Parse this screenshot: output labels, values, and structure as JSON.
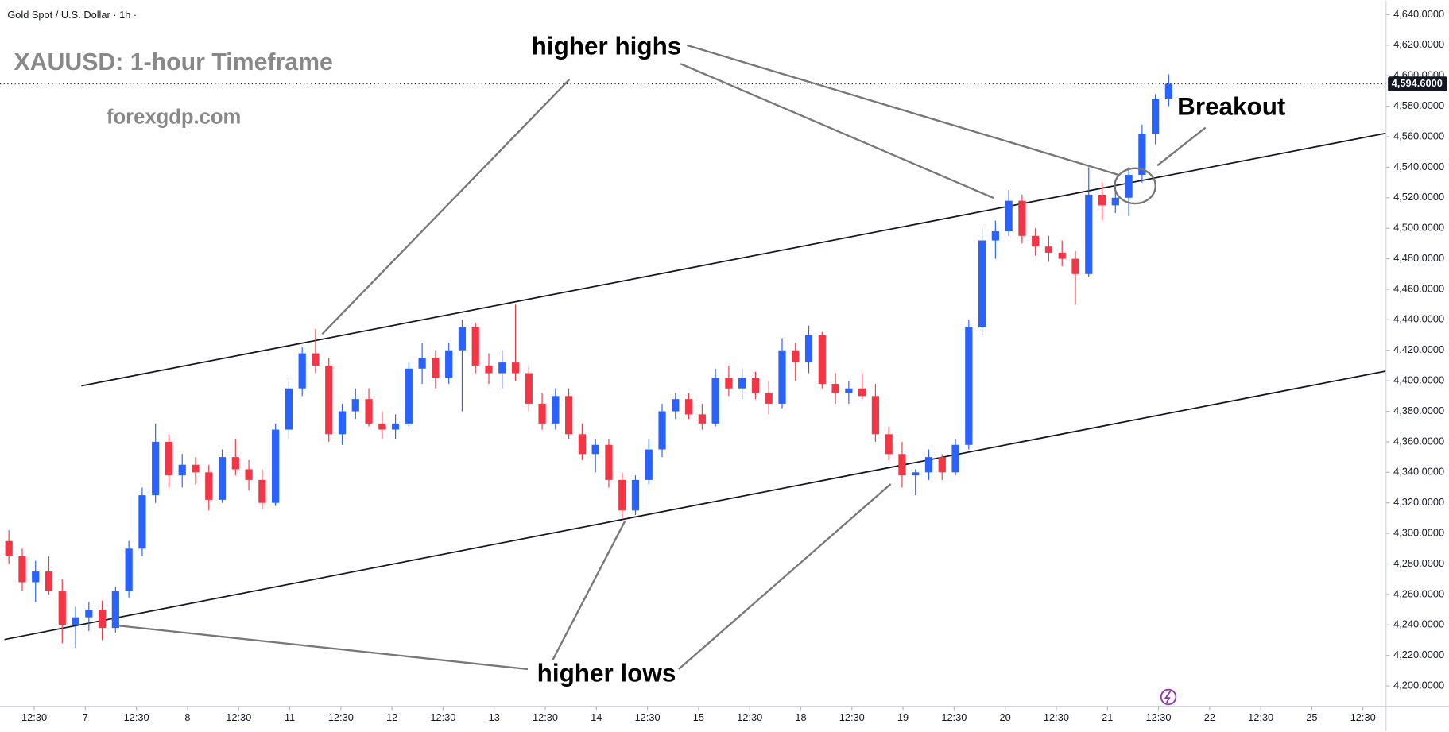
{
  "chart_data": {
    "type": "candlestick",
    "header": "Gold Spot / U.S. Dollar · 1h ·",
    "title": "XAUUSD: 1-hour Timeframe",
    "subtitle": "forexgdp.com",
    "annotations": {
      "highs": "higher highs",
      "lows": "higher lows",
      "breakout": "Breakout"
    },
    "up_color": "#2962ff",
    "down_color": "#f23645",
    "xlim": [
      0,
      311.9
    ],
    "ylim": [
      4186.7,
      4649.1
    ],
    "yticks": [
      {
        "value": 4200,
        "label": "4,200.0000"
      },
      {
        "value": 4220,
        "label": "4,220.0000"
      },
      {
        "value": 4240,
        "label": "4,240.0000"
      },
      {
        "value": 4260,
        "label": "4,260.0000"
      },
      {
        "value": 4280,
        "label": "4,280.0000"
      },
      {
        "value": 4300,
        "label": "4,300.0000"
      },
      {
        "value": 4320,
        "label": "4,320.0000"
      },
      {
        "value": 4340,
        "label": "4,340.0000"
      },
      {
        "value": 4360,
        "label": "4,360.0000"
      },
      {
        "value": 4380,
        "label": "4,380.0000"
      },
      {
        "value": 4400,
        "label": "4,400.0000"
      },
      {
        "value": 4420,
        "label": "4,420.0000"
      },
      {
        "value": 4440,
        "label": "4,440.0000"
      },
      {
        "value": 4460,
        "label": "4,460.0000"
      },
      {
        "value": 4480,
        "label": "4,480.0000"
      },
      {
        "value": 4500,
        "label": "4,500.0000"
      },
      {
        "value": 4520,
        "label": "4,520.0000"
      },
      {
        "value": 4540,
        "label": "4,540.0000"
      },
      {
        "value": 4560,
        "label": "4,560.0000"
      },
      {
        "value": 4580,
        "label": "4,580.0000"
      },
      {
        "value": 4600,
        "label": "4,600.0000"
      },
      {
        "value": 4620,
        "label": "4,620.0000"
      },
      {
        "value": 4640,
        "label": "4,640.0000"
      }
    ],
    "xticks": [
      {
        "value": 7.7,
        "label": "12:30"
      },
      {
        "value": 19.2,
        "label": "7"
      },
      {
        "value": 30.7,
        "label": "12:30"
      },
      {
        "value": 42.2,
        "label": "8"
      },
      {
        "value": 53.7,
        "label": "12:30"
      },
      {
        "value": 65.2,
        "label": "11"
      },
      {
        "value": 76.7,
        "label": "12:30"
      },
      {
        "value": 88.2,
        "label": "12"
      },
      {
        "value": 99.7,
        "label": "12:30"
      },
      {
        "value": 111.2,
        "label": "13"
      },
      {
        "value": 122.7,
        "label": "12:30"
      },
      {
        "value": 134.2,
        "label": "14"
      },
      {
        "value": 145.7,
        "label": "12:30"
      },
      {
        "value": 157.2,
        "label": "15"
      },
      {
        "value": 168.7,
        "label": "12:30"
      },
      {
        "value": 180.2,
        "label": "18"
      },
      {
        "value": 191.7,
        "label": "12:30"
      },
      {
        "value": 203.2,
        "label": "19"
      },
      {
        "value": 214.7,
        "label": "12:30"
      },
      {
        "value": 226.2,
        "label": "20"
      },
      {
        "value": 237.7,
        "label": "12:30"
      },
      {
        "value": 249.2,
        "label": "21"
      },
      {
        "value": 260.7,
        "label": "12:30"
      },
      {
        "value": 272.2,
        "label": "22"
      },
      {
        "value": 283.7,
        "label": "12:30"
      },
      {
        "value": 295.2,
        "label": "25"
      },
      {
        "value": 306.7,
        "label": "12:30"
      }
    ],
    "last_price": {
      "value": 4594.6,
      "label": "4,594.6000"
    },
    "trendlines": [
      {
        "x": [
          18.3,
          311.9
        ],
        "y": [
          4396.7,
          4562.3
        ]
      },
      {
        "x": [
          1.0,
          311.9
        ],
        "y": [
          4230.4,
          4406.4
        ]
      }
    ],
    "candles": {
      "x": [
        2,
        5,
        8,
        11,
        14,
        17,
        20,
        23,
        26,
        29,
        32,
        35,
        38,
        41,
        44,
        47,
        50,
        53,
        56,
        59,
        62,
        65,
        68,
        71,
        74,
        77,
        80,
        83,
        86,
        89,
        92,
        95,
        98,
        101,
        104,
        107,
        110,
        113,
        116,
        119,
        122,
        125,
        128,
        131,
        134,
        137,
        140,
        143,
        146,
        149,
        152,
        155,
        158,
        161,
        164,
        167,
        170,
        173,
        176,
        179,
        182,
        185,
        188,
        191,
        194,
        197,
        200,
        203,
        206,
        209,
        212,
        215,
        218,
        221,
        224,
        227,
        230,
        233,
        236,
        239,
        242,
        245,
        248,
        251,
        254,
        257,
        260,
        263
      ],
      "open": [
        4295,
        4285,
        4268,
        4275,
        4262,
        4240,
        4245,
        4250,
        4238,
        4262,
        4290,
        4325,
        4360,
        4338,
        4345,
        4340,
        4322,
        4350,
        4342,
        4335,
        4320,
        4368,
        4395,
        4418,
        4410,
        4365,
        4380,
        4388,
        4372,
        4368,
        4372,
        4408,
        4415,
        4402,
        4420,
        4435,
        4410,
        4405,
        4412,
        4405,
        4385,
        4372,
        4390,
        4365,
        4352,
        4358,
        4335,
        4315,
        4335,
        4355,
        4380,
        4388,
        4378,
        4372,
        4402,
        4395,
        4402,
        4392,
        4385,
        4420,
        4412,
        4430,
        4398,
        4392,
        4395,
        4390,
        4365,
        4352,
        4338,
        4340,
        4350,
        4340,
        4358,
        4435,
        4492,
        4498,
        4518,
        4495,
        4488,
        4484,
        4480,
        4470,
        4522,
        4515,
        4520,
        4535,
        4562,
        4585
      ],
      "high": [
        4302,
        4290,
        4282,
        4285,
        4270,
        4252,
        4255,
        4256,
        4265,
        4295,
        4330,
        4372,
        4365,
        4352,
        4350,
        4345,
        4355,
        4362,
        4348,
        4342,
        4372,
        4400,
        4422,
        4434,
        4415,
        4385,
        4395,
        4395,
        4380,
        4378,
        4412,
        4425,
        4420,
        4425,
        4440,
        4438,
        4418,
        4420,
        4450,
        4410,
        4392,
        4395,
        4395,
        4372,
        4362,
        4362,
        4340,
        4338,
        4362,
        4385,
        4392,
        4392,
        4385,
        4408,
        4410,
        4408,
        4406,
        4400,
        4428,
        4425,
        4436,
        4432,
        4405,
        4400,
        4405,
        4398,
        4370,
        4360,
        4342,
        4355,
        4352,
        4362,
        4440,
        4500,
        4505,
        4525,
        4522,
        4500,
        4495,
        4492,
        4485,
        4540,
        4530,
        4532,
        4540,
        4568,
        4588,
        4601
      ],
      "low": [
        4280,
        4262,
        4255,
        4260,
        4228,
        4225,
        4236,
        4230,
        4235,
        4258,
        4285,
        4320,
        4330,
        4330,
        4332,
        4315,
        4320,
        4338,
        4328,
        4316,
        4318,
        4362,
        4390,
        4405,
        4360,
        4358,
        4375,
        4370,
        4362,
        4362,
        4370,
        4398,
        4395,
        4398,
        4380,
        4405,
        4398,
        4395,
        4400,
        4380,
        4368,
        4368,
        4362,
        4348,
        4340,
        4330,
        4310,
        4312,
        4332,
        4350,
        4375,
        4375,
        4368,
        4370,
        4390,
        4388,
        4388,
        4378,
        4382,
        4400,
        4405,
        4395,
        4385,
        4385,
        4388,
        4360,
        4348,
        4330,
        4325,
        4335,
        4335,
        4338,
        4355,
        4430,
        4480,
        4495,
        4490,
        4482,
        4478,
        4475,
        4450,
        4468,
        4505,
        4510,
        4508,
        4530,
        4555,
        4580
      ],
      "close": [
        4285,
        4268,
        4275,
        4262,
        4240,
        4245,
        4250,
        4238,
        4262,
        4290,
        4325,
        4360,
        4338,
        4345,
        4340,
        4322,
        4350,
        4342,
        4335,
        4320,
        4368,
        4395,
        4418,
        4410,
        4365,
        4380,
        4388,
        4372,
        4368,
        4372,
        4408,
        4415,
        4402,
        4420,
        4435,
        4410,
        4405,
        4412,
        4405,
        4385,
        4372,
        4390,
        4365,
        4352,
        4358,
        4335,
        4315,
        4335,
        4355,
        4380,
        4388,
        4378,
        4372,
        4402,
        4395,
        4402,
        4392,
        4385,
        4420,
        4412,
        4430,
        4398,
        4392,
        4395,
        4390,
        4365,
        4352,
        4338,
        4340,
        4350,
        4340,
        4358,
        4435,
        4492,
        4498,
        4518,
        4495,
        4488,
        4484,
        4480,
        4470,
        4522,
        4515,
        4520,
        4535,
        4562,
        4585,
        4594.6
      ]
    }
  }
}
